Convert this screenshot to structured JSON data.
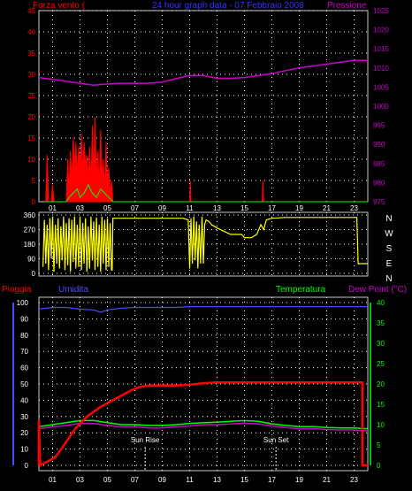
{
  "header": {
    "wind_label": "Forza vento (",
    "title": "24 hour graph data - 07 Febbraio 2008",
    "pressure_label": "Pressione"
  },
  "bottom_header": {
    "rain_label": "Pioggia",
    "humidity_label": "Umidita",
    "temp_label": "Temperatura",
    "dew_label": "Dew Point (°C)"
  },
  "annotations": {
    "sunrise": "Sun Rise",
    "sunset": "Sun Set"
  },
  "colors": {
    "wind": "#ff0000",
    "gust": "#ff0000",
    "green": "#00ff00",
    "pressure": "#cc00cc",
    "direction": "#ffff00",
    "rain": "#ff0000",
    "humidity": "#4a4aff",
    "temperature": "#00ff00",
    "dew": "#cc00cc",
    "grid": "#ffffff",
    "frame": "#c8c8c8"
  },
  "chart_data": [
    {
      "type": "line",
      "name": "wind_pressure",
      "x_ticks": [
        "01",
        "03",
        "05",
        "07",
        "09",
        "11",
        "13",
        "15",
        "17",
        "19",
        "21",
        "23"
      ],
      "xlim": [
        0,
        24
      ],
      "ylim_left": [
        0,
        45
      ],
      "yticks_left": [
        0,
        5,
        10,
        15,
        20,
        25,
        30,
        35,
        40,
        45
      ],
      "ylim_right": [
        975,
        1025
      ],
      "yticks_right": [
        975,
        980,
        985,
        990,
        995,
        1000,
        1005,
        1010,
        1015,
        1020,
        1025
      ],
      "wind_gust": [
        [
          0.5,
          0
        ],
        [
          0.6,
          11
        ],
        [
          0.7,
          0
        ],
        [
          0.9,
          0
        ],
        [
          1.0,
          4
        ],
        [
          1.1,
          0
        ],
        [
          2.0,
          0
        ],
        [
          2.1,
          10
        ],
        [
          2.2,
          3
        ],
        [
          2.3,
          12
        ],
        [
          2.4,
          5
        ],
        [
          2.5,
          15
        ],
        [
          2.6,
          8
        ],
        [
          2.7,
          14
        ],
        [
          2.8,
          6
        ],
        [
          2.9,
          13
        ],
        [
          3.0,
          8
        ],
        [
          3.1,
          16
        ],
        [
          3.2,
          7
        ],
        [
          3.3,
          14
        ],
        [
          3.4,
          9
        ],
        [
          3.5,
          11
        ],
        [
          3.6,
          5
        ],
        [
          3.7,
          13
        ],
        [
          3.8,
          4
        ],
        [
          3.9,
          18
        ],
        [
          4.0,
          6
        ],
        [
          4.1,
          20
        ],
        [
          4.2,
          5
        ],
        [
          4.3,
          12
        ],
        [
          4.4,
          3
        ],
        [
          4.5,
          17
        ],
        [
          4.6,
          6
        ],
        [
          4.7,
          10
        ],
        [
          4.8,
          3
        ],
        [
          4.9,
          14
        ],
        [
          5.0,
          4
        ],
        [
          5.1,
          8
        ],
        [
          5.2,
          2
        ],
        [
          5.3,
          5
        ],
        [
          5.4,
          0
        ],
        [
          11.0,
          0
        ],
        [
          11.05,
          5
        ],
        [
          11.1,
          0
        ],
        [
          16.3,
          0
        ],
        [
          16.35,
          5
        ],
        [
          16.4,
          0
        ]
      ],
      "wind_avg": [
        [
          0.5,
          0
        ],
        [
          2.0,
          0
        ],
        [
          2.2,
          1
        ],
        [
          2.5,
          2
        ],
        [
          2.8,
          3
        ],
        [
          3.0,
          1
        ],
        [
          3.3,
          2
        ],
        [
          3.6,
          4
        ],
        [
          3.9,
          2
        ],
        [
          4.2,
          1
        ],
        [
          4.5,
          3
        ],
        [
          4.8,
          2
        ],
        [
          5.1,
          1
        ],
        [
          5.4,
          0
        ],
        [
          24,
          0
        ]
      ],
      "pressure": [
        [
          0,
          1007.5
        ],
        [
          1,
          1007
        ],
        [
          2,
          1006.5
        ],
        [
          3,
          1006
        ],
        [
          4,
          1005.5
        ],
        [
          5,
          1005.8
        ],
        [
          6,
          1006
        ],
        [
          7,
          1006
        ],
        [
          8,
          1006
        ],
        [
          9,
          1006.3
        ],
        [
          10,
          1007.2
        ],
        [
          11,
          1008
        ],
        [
          12,
          1008
        ],
        [
          13,
          1007.3
        ],
        [
          14,
          1007.3
        ],
        [
          15,
          1007.5
        ],
        [
          16,
          1008
        ],
        [
          17,
          1008.5
        ],
        [
          18,
          1009.3
        ],
        [
          19,
          1010
        ],
        [
          20,
          1010.5
        ],
        [
          21,
          1011
        ],
        [
          22,
          1011.5
        ],
        [
          23,
          1012
        ],
        [
          24,
          1012
        ]
      ]
    },
    {
      "type": "line",
      "name": "wind_direction",
      "ylim": [
        0,
        360
      ],
      "yticks": [
        0,
        90,
        180,
        270,
        360
      ],
      "compass": [
        "N",
        "W",
        "S",
        "E",
        "N"
      ],
      "direction": [
        [
          0.3,
          40
        ],
        [
          0.4,
          330
        ],
        [
          0.5,
          60
        ],
        [
          0.6,
          300
        ],
        [
          0.7,
          20
        ],
        [
          0.8,
          340
        ],
        [
          0.9,
          90
        ],
        [
          1.0,
          350
        ],
        [
          1.1,
          10
        ],
        [
          1.2,
          300
        ],
        [
          1.3,
          60
        ],
        [
          1.4,
          340
        ],
        [
          1.5,
          30
        ],
        [
          1.6,
          290
        ],
        [
          1.7,
          80
        ],
        [
          1.8,
          350
        ],
        [
          1.9,
          20
        ],
        [
          2.0,
          310
        ],
        [
          2.1,
          50
        ],
        [
          2.2,
          340
        ],
        [
          2.3,
          10
        ],
        [
          2.4,
          330
        ],
        [
          2.5,
          70
        ],
        [
          2.6,
          350
        ],
        [
          2.7,
          30
        ],
        [
          2.8,
          300
        ],
        [
          2.9,
          40
        ],
        [
          3.0,
          350
        ],
        [
          3.1,
          20
        ],
        [
          3.2,
          310
        ],
        [
          3.3,
          60
        ],
        [
          3.4,
          340
        ],
        [
          3.5,
          10
        ],
        [
          3.6,
          290
        ],
        [
          3.7,
          30
        ],
        [
          3.8,
          350
        ],
        [
          3.9,
          80
        ],
        [
          4.0,
          320
        ],
        [
          4.1,
          20
        ],
        [
          4.2,
          345
        ],
        [
          4.3,
          40
        ],
        [
          4.4,
          300
        ],
        [
          4.5,
          10
        ],
        [
          4.6,
          350
        ],
        [
          4.7,
          60
        ],
        [
          4.8,
          330
        ],
        [
          4.9,
          20
        ],
        [
          5.0,
          340
        ],
        [
          5.1,
          40
        ],
        [
          5.2,
          310
        ],
        [
          5.3,
          20
        ],
        [
          5.35,
          20
        ],
        [
          5.4,
          340
        ],
        [
          9.5,
          340
        ],
        [
          10.5,
          340
        ],
        [
          10.9,
          330
        ],
        [
          11.0,
          30
        ],
        [
          11.1,
          340
        ],
        [
          11.2,
          60
        ],
        [
          11.3,
          350
        ],
        [
          11.4,
          80
        ],
        [
          11.5,
          320
        ],
        [
          11.6,
          30
        ],
        [
          11.7,
          300
        ],
        [
          11.8,
          60
        ],
        [
          11.9,
          350
        ],
        [
          12.0,
          60
        ],
        [
          12.1,
          300
        ],
        [
          12.2,
          330
        ],
        [
          12.4,
          320
        ],
        [
          12.6,
          300
        ],
        [
          13.0,
          280
        ],
        [
          14.0,
          240
        ],
        [
          14.8,
          240
        ],
        [
          15.0,
          220
        ],
        [
          15.5,
          220
        ],
        [
          15.9,
          240
        ],
        [
          16.2,
          300
        ],
        [
          16.4,
          270
        ],
        [
          16.6,
          330
        ],
        [
          17.0,
          340
        ],
        [
          18.0,
          345
        ],
        [
          20.0,
          345
        ],
        [
          22.0,
          345
        ],
        [
          23.2,
          345
        ],
        [
          23.3,
          60
        ],
        [
          24,
          60
        ]
      ]
    },
    {
      "type": "line",
      "name": "rain_humidity_temp",
      "x_ticks": [
        "01",
        "03",
        "05",
        "07",
        "09",
        "11",
        "13",
        "15",
        "17",
        "19",
        "21",
        "23"
      ],
      "xlim": [
        0,
        24
      ],
      "ylim_left": [
        0,
        100
      ],
      "yticks_left": [
        0,
        10,
        20,
        30,
        40,
        50,
        60,
        70,
        80,
        90,
        100
      ],
      "ylim_right": [
        0,
        40
      ],
      "yticks_right": [
        0,
        5,
        10,
        15,
        20,
        25,
        30,
        35,
        40
      ],
      "rain": [
        [
          0,
          0
        ],
        [
          0,
          28
        ],
        [
          0.1,
          0
        ],
        [
          1.2,
          5
        ],
        [
          1.8,
          12
        ],
        [
          2.6,
          22
        ],
        [
          3.5,
          30
        ],
        [
          4.5,
          36
        ],
        [
          5.6,
          41
        ],
        [
          6.7,
          46
        ],
        [
          7.3,
          48
        ],
        [
          8.0,
          49
        ],
        [
          9,
          49
        ],
        [
          10,
          49
        ],
        [
          11,
          49.5
        ],
        [
          12,
          50.5
        ],
        [
          13,
          51
        ],
        [
          14,
          51
        ],
        [
          16,
          51
        ],
        [
          18,
          51
        ],
        [
          20,
          51
        ],
        [
          22,
          51
        ],
        [
          23.6,
          51
        ],
        [
          23.6,
          0
        ],
        [
          24,
          0
        ]
      ],
      "humidity": [
        [
          0,
          96
        ],
        [
          1,
          97
        ],
        [
          2,
          97
        ],
        [
          3,
          96
        ],
        [
          4,
          95.5
        ],
        [
          4.5,
          94
        ],
        [
          5,
          95.5
        ],
        [
          6,
          96.5
        ],
        [
          7,
          97
        ],
        [
          8,
          97
        ],
        [
          9,
          97
        ],
        [
          10,
          97
        ],
        [
          11,
          97.5
        ],
        [
          12,
          97.5
        ],
        [
          13,
          97.5
        ],
        [
          14,
          97.5
        ],
        [
          15,
          97.5
        ],
        [
          16,
          97.5
        ],
        [
          17,
          97.5
        ],
        [
          18,
          97.5
        ],
        [
          19,
          97.5
        ],
        [
          20,
          97.5
        ],
        [
          21,
          97.5
        ],
        [
          22,
          97.5
        ],
        [
          23,
          97.5
        ],
        [
          24,
          97.5
        ]
      ],
      "temperature": [
        [
          0,
          9.5
        ],
        [
          1,
          10
        ],
        [
          2,
          10.5
        ],
        [
          3,
          11
        ],
        [
          4,
          11
        ],
        [
          5,
          10.5
        ],
        [
          6,
          10
        ],
        [
          7,
          10
        ],
        [
          8,
          9.8
        ],
        [
          9,
          9.8
        ],
        [
          10,
          10
        ],
        [
          11,
          10.3
        ],
        [
          12,
          10.5
        ],
        [
          13,
          10.6
        ],
        [
          14,
          10.8
        ],
        [
          15,
          11
        ],
        [
          16,
          10.8
        ],
        [
          17,
          10.2
        ],
        [
          18,
          9.8
        ],
        [
          19,
          9.5
        ],
        [
          20,
          9.5
        ],
        [
          21,
          9.3
        ],
        [
          22,
          9.2
        ],
        [
          23,
          9.2
        ],
        [
          24,
          9.0
        ]
      ],
      "dew_point": [
        [
          0,
          9.0
        ],
        [
          1,
          9.5
        ],
        [
          2,
          9.8
        ],
        [
          3,
          10.3
        ],
        [
          4,
          10.3
        ],
        [
          5,
          9.8
        ],
        [
          6,
          9.5
        ],
        [
          7,
          9.5
        ],
        [
          8,
          9.2
        ],
        [
          9,
          9.2
        ],
        [
          10,
          9.5
        ],
        [
          11,
          9.7
        ],
        [
          12,
          10
        ],
        [
          13,
          10
        ],
        [
          14,
          10.2
        ],
        [
          15,
          10.4
        ],
        [
          16,
          10.2
        ],
        [
          17,
          9.7
        ],
        [
          18,
          9.3
        ],
        [
          19,
          9.0
        ],
        [
          20,
          9.0
        ],
        [
          21,
          8.8
        ],
        [
          22,
          8.7
        ],
        [
          23,
          8.7
        ],
        [
          24,
          8.5
        ]
      ],
      "sunrise_hour": 7.75,
      "sunset_hour": 17.3
    }
  ]
}
